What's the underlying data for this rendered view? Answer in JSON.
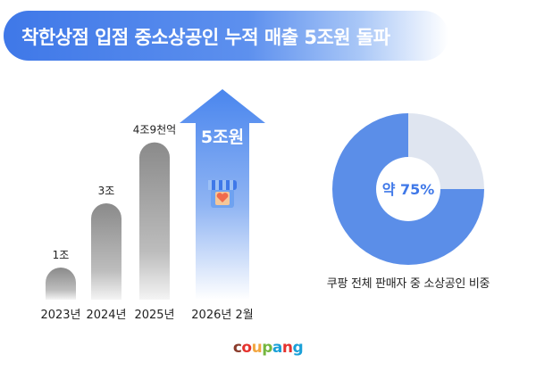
{
  "title": "착한상점 입점 중소상공인 누적 매출 5조원 돌파",
  "chart_data": [
    {
      "type": "bar",
      "categories": [
        "2023년",
        "2024년",
        "2025년",
        "2026년 2월"
      ],
      "data_labels": [
        "1조",
        "3조",
        "4조9천억",
        "5조원"
      ],
      "values": [
        1,
        3,
        4.9,
        5
      ],
      "colors": {
        "bars": "#8c8c8c",
        "highlight": "#4a86ee"
      }
    },
    {
      "type": "pie",
      "center_label": "약 75%",
      "caption": "쿠팡 전체 판매자 중 소상공인 비중",
      "slices": [
        {
          "value": 75,
          "color": "#5b8ee8"
        },
        {
          "value": 25,
          "color": "#dfe5f0"
        }
      ]
    }
  ],
  "logo": {
    "letters": [
      "c",
      "o",
      "u",
      "p",
      "a",
      "n",
      "g"
    ],
    "colors": [
      "#8a3b2b",
      "#e5322d",
      "#f2a640",
      "#74b63e",
      "#1aa0d8",
      "#e5322d",
      "#1aa0d8"
    ]
  }
}
